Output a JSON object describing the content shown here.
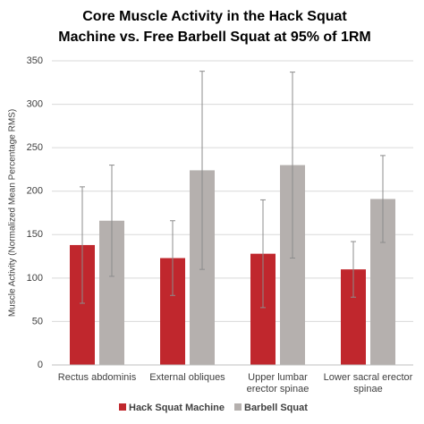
{
  "chart_data": {
    "type": "bar",
    "title": [
      "Core Muscle Activity in the Hack Squat",
      "Machine vs. Free Barbell Squat at 95% of 1RM"
    ],
    "y_label": "Muscle Activity (Normalized Mean Percentage RMS)",
    "categories": [
      [
        "Rectus abdominis"
      ],
      [
        "External obliques"
      ],
      [
        "Upper lumbar",
        "erector spinae"
      ],
      [
        "Lower sacral erector",
        "spinae"
      ]
    ],
    "series": [
      {
        "name": "Hack Squat Machine",
        "color": "#c0272d",
        "values": [
          138,
          123,
          128,
          110
        ],
        "errors": [
          67,
          43,
          62,
          32
        ]
      },
      {
        "name": "Barbell Squat",
        "color": "#b5b0ae",
        "values": [
          166,
          224,
          230,
          191
        ],
        "errors": [
          64,
          114,
          107,
          50
        ]
      }
    ],
    "ylim": [
      0,
      350
    ],
    "yticks": [
      0,
      50,
      100,
      150,
      200,
      250,
      300,
      350
    ],
    "grid": true,
    "legend": "bottom"
  }
}
